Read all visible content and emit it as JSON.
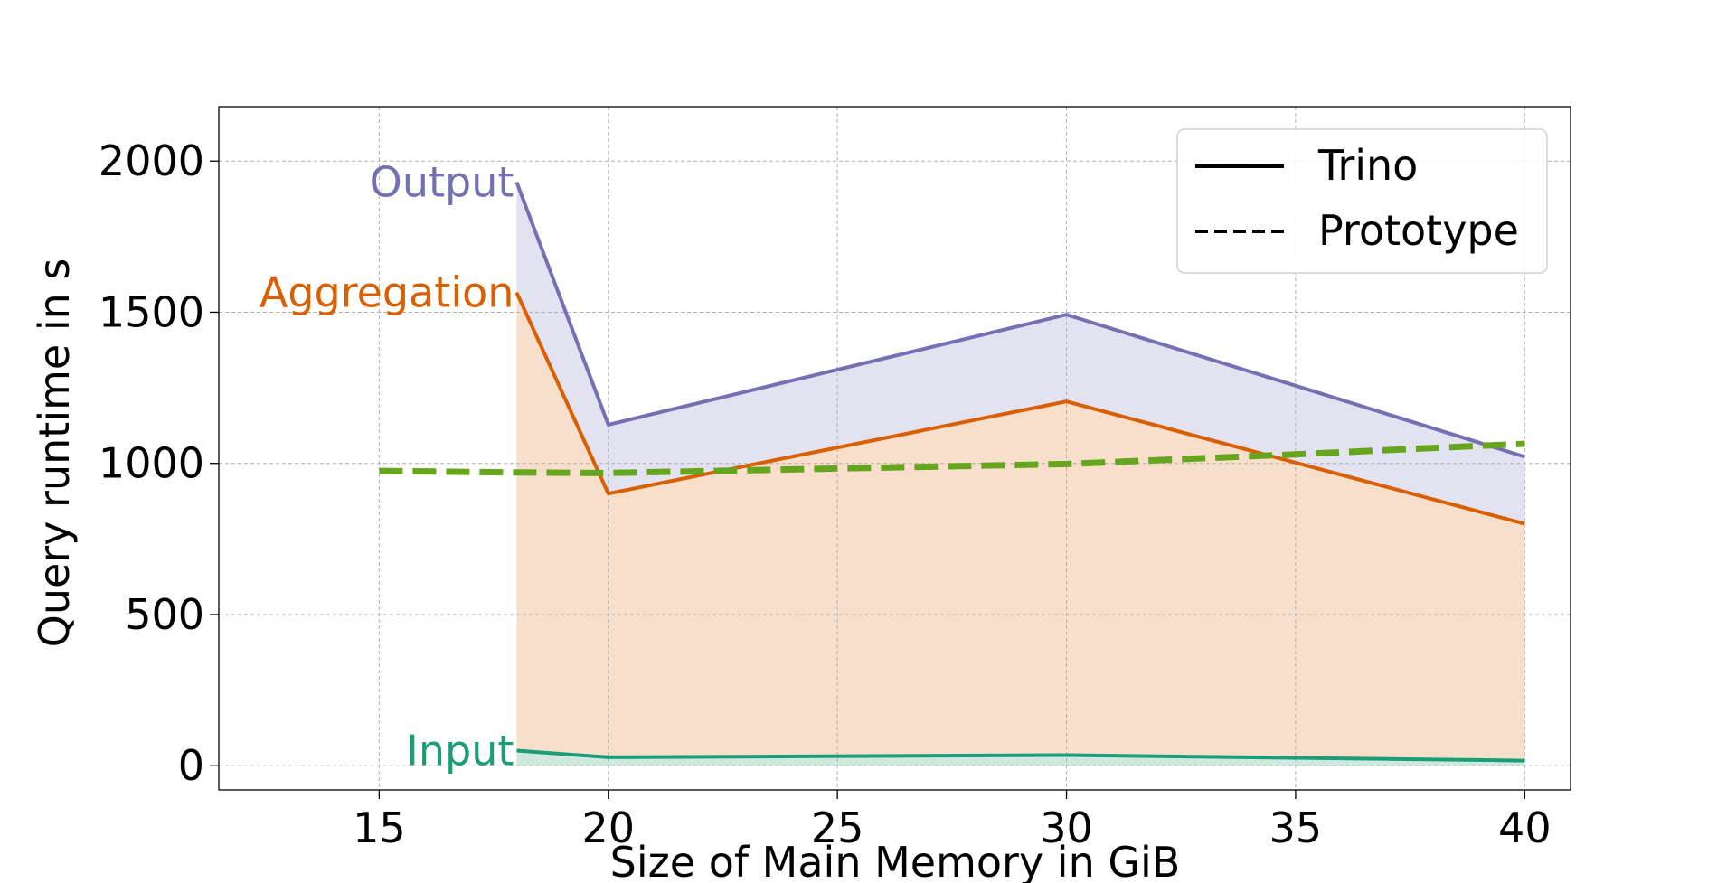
{
  "chart_data": {
    "type": "area",
    "xlabel": "Size of Main Memory in GiB",
    "ylabel": "Query runtime in s",
    "xlim": [
      11.5,
      41
    ],
    "ylim": [
      -80,
      2180
    ],
    "x_ticks": [
      15,
      20,
      25,
      30,
      35,
      40
    ],
    "y_ticks": [
      0,
      500,
      1000,
      1500,
      2000
    ],
    "grid": true,
    "legend": {
      "position": "top-right",
      "entries": [
        {
          "label": "Trino",
          "style": "solid"
        },
        {
          "label": "Prototype",
          "style": "dashed"
        }
      ]
    },
    "stacked_series": [
      {
        "name": "Input",
        "color": "#1b9e77",
        "fill": "#cfe9de",
        "x": [
          18,
          20,
          30,
          40
        ],
        "values": [
          50,
          28,
          35,
          17
        ]
      },
      {
        "name": "Aggregation",
        "color": "#d95f02",
        "fill": "#f7dfcc",
        "x": [
          18,
          20,
          30,
          40
        ],
        "values": [
          1565,
          900,
          1205,
          800
        ]
      },
      {
        "name": "Output",
        "color": "#7570b3",
        "fill": "#e3e2f0",
        "x": [
          18,
          20,
          30,
          40
        ],
        "values": [
          1930,
          1128,
          1492,
          1022
        ]
      }
    ],
    "prototype_series": {
      "color": "#66a61e",
      "x": [
        15,
        18,
        20,
        30,
        35,
        40
      ],
      "values": [
        975,
        970,
        968,
        998,
        1030,
        1065
      ]
    }
  }
}
